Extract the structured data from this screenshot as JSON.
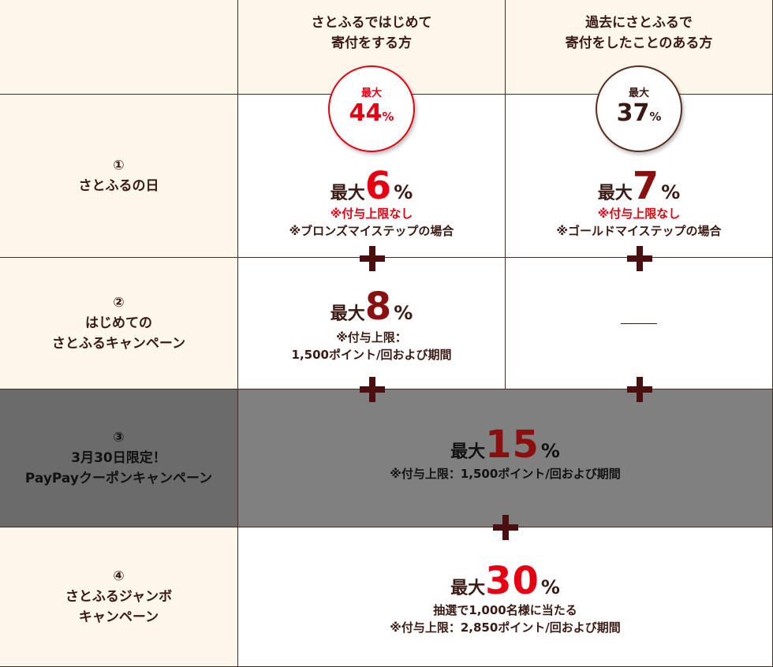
{
  "columns": {
    "first_time": "さとふるではじめて\n寄付をする方",
    "returning": "過去にさとふるで\n寄付をしたことのある方"
  },
  "badges": {
    "first_time": {
      "top": "最大",
      "value": "44",
      "unit": "%"
    },
    "returning": {
      "top": "最大",
      "value": "37",
      "unit": "%"
    }
  },
  "rows": {
    "r1": {
      "label": "①\nさとふるの日",
      "first_time": {
        "prefix": "最大",
        "value": "6",
        "unit": "%",
        "note_red": "※付与上限なし",
        "note": "※ブロンズマイステップの場合"
      },
      "returning": {
        "prefix": "最大",
        "value": "7",
        "unit": "%",
        "note_red": "※付与上限なし",
        "note": "※ゴールドマイステップの場合"
      }
    },
    "r2": {
      "label": "②\nはじめての\nさとふるキャンペーン",
      "first_time": {
        "prefix": "最大",
        "value": "8",
        "unit": "%",
        "note": "※付与上限：\n1,500ポイント/回および期間"
      },
      "returning": {
        "text": ""
      }
    },
    "r3": {
      "label": "③\n3月30日限定！\nPayPayクーポンキャンペーン",
      "combined": {
        "prefix": "最大",
        "value": "15",
        "unit": "%",
        "note": "※付与上限：1,500ポイント/回および期間"
      }
    },
    "r4": {
      "label": "④\nさとふるジャンボ\nキャンペーン",
      "combined": {
        "prefix": "最大",
        "value": "30",
        "unit": "%",
        "note": "抽選で1,000名様に当たる\n※付与上限：2,850ポイント/回および期間"
      }
    }
  },
  "colors": {
    "cream": "#fdf6ea",
    "accent_red": "#e60012",
    "dark_red": "#8a0f0f",
    "brown": "#3b1a14",
    "highlight_gray": "#808080"
  }
}
